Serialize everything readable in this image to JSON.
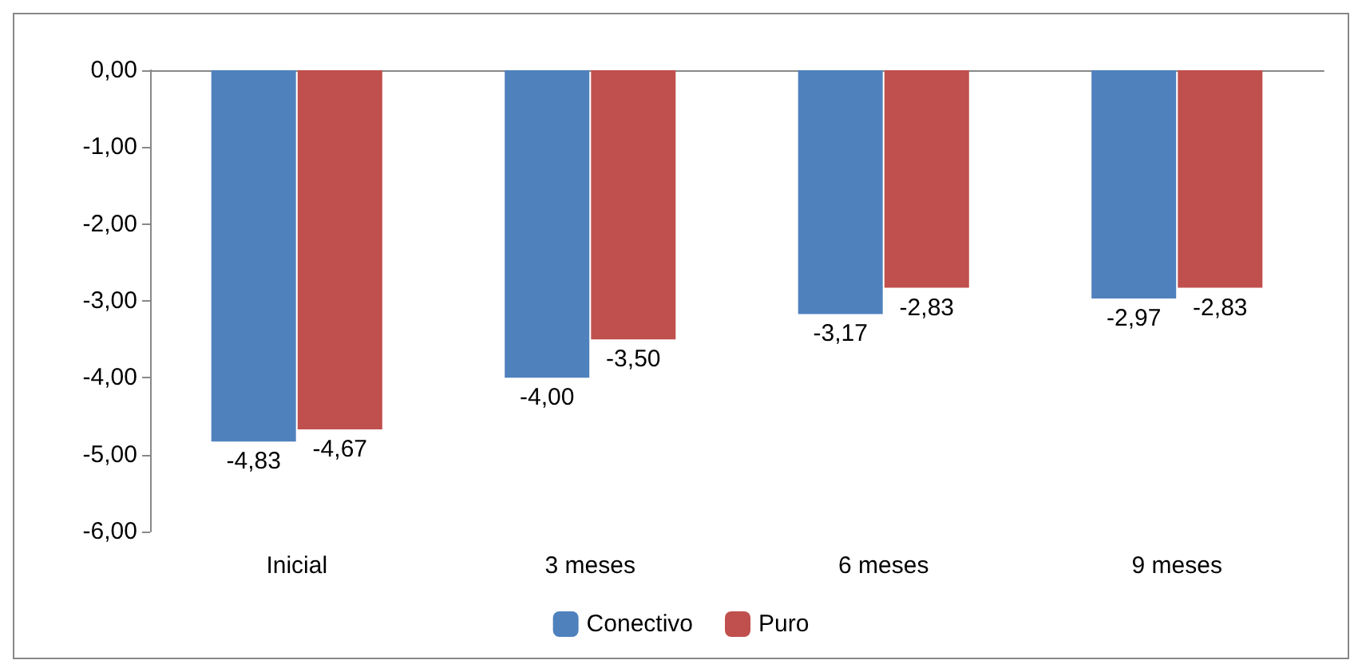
{
  "chart_data": {
    "type": "bar",
    "categories": [
      "Inicial",
      "3 meses",
      "6 meses",
      "9 meses"
    ],
    "series": [
      {
        "name": "Conectivo",
        "color": "#4f81bd",
        "values": [
          -4.83,
          -4.0,
          -3.17,
          -2.97
        ],
        "value_labels": [
          "-4,83",
          "-4,00",
          "-3,17",
          "-2,97"
        ]
      },
      {
        "name": "Puro",
        "color": "#c0504d",
        "values": [
          -4.67,
          -3.5,
          -2.83,
          -2.83
        ],
        "value_labels": [
          "-4,67",
          "-3,50",
          "-2,83",
          "-2,83"
        ]
      }
    ],
    "ylim": [
      -6,
      0
    ],
    "yticks": [
      {
        "value": 0,
        "label": "0,00"
      },
      {
        "value": -1,
        "label": "-1,00"
      },
      {
        "value": -2,
        "label": "-2,00"
      },
      {
        "value": -3,
        "label": "-3,00"
      },
      {
        "value": -4,
        "label": "-4,00"
      },
      {
        "value": -5,
        "label": "-5,00"
      },
      {
        "value": -6,
        "label": "-6,00"
      }
    ],
    "grid": false,
    "legend": "bottom"
  }
}
